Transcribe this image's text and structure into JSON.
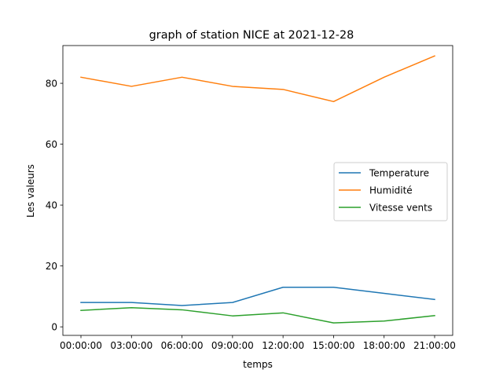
{
  "chart_data": {
    "type": "line",
    "title": "graph of station NICE at 2021-12-28",
    "xlabel": "temps",
    "ylabel": "Les valeurs",
    "categories": [
      "00:00:00",
      "03:00:00",
      "06:00:00",
      "09:00:00",
      "12:00:00",
      "15:00:00",
      "18:00:00",
      "21:00:00"
    ],
    "yticks": [
      0,
      20,
      40,
      60,
      80
    ],
    "ylim": [
      -2.8,
      92.4
    ],
    "grid": false,
    "legend_position": "center-right",
    "series": [
      {
        "name": "Temperature",
        "color": "#1f77b4",
        "values": [
          8,
          8,
          7,
          8,
          13,
          13,
          11,
          9
        ]
      },
      {
        "name": "Humidité",
        "color": "#ff7f0e",
        "values": [
          82,
          79,
          82,
          79,
          78,
          74,
          82,
          89
        ]
      },
      {
        "name": "Vitesse vents",
        "color": "#2ca02c",
        "values": [
          5.4,
          6.3,
          5.6,
          3.6,
          4.6,
          1.3,
          1.9,
          3.7
        ]
      }
    ]
  }
}
